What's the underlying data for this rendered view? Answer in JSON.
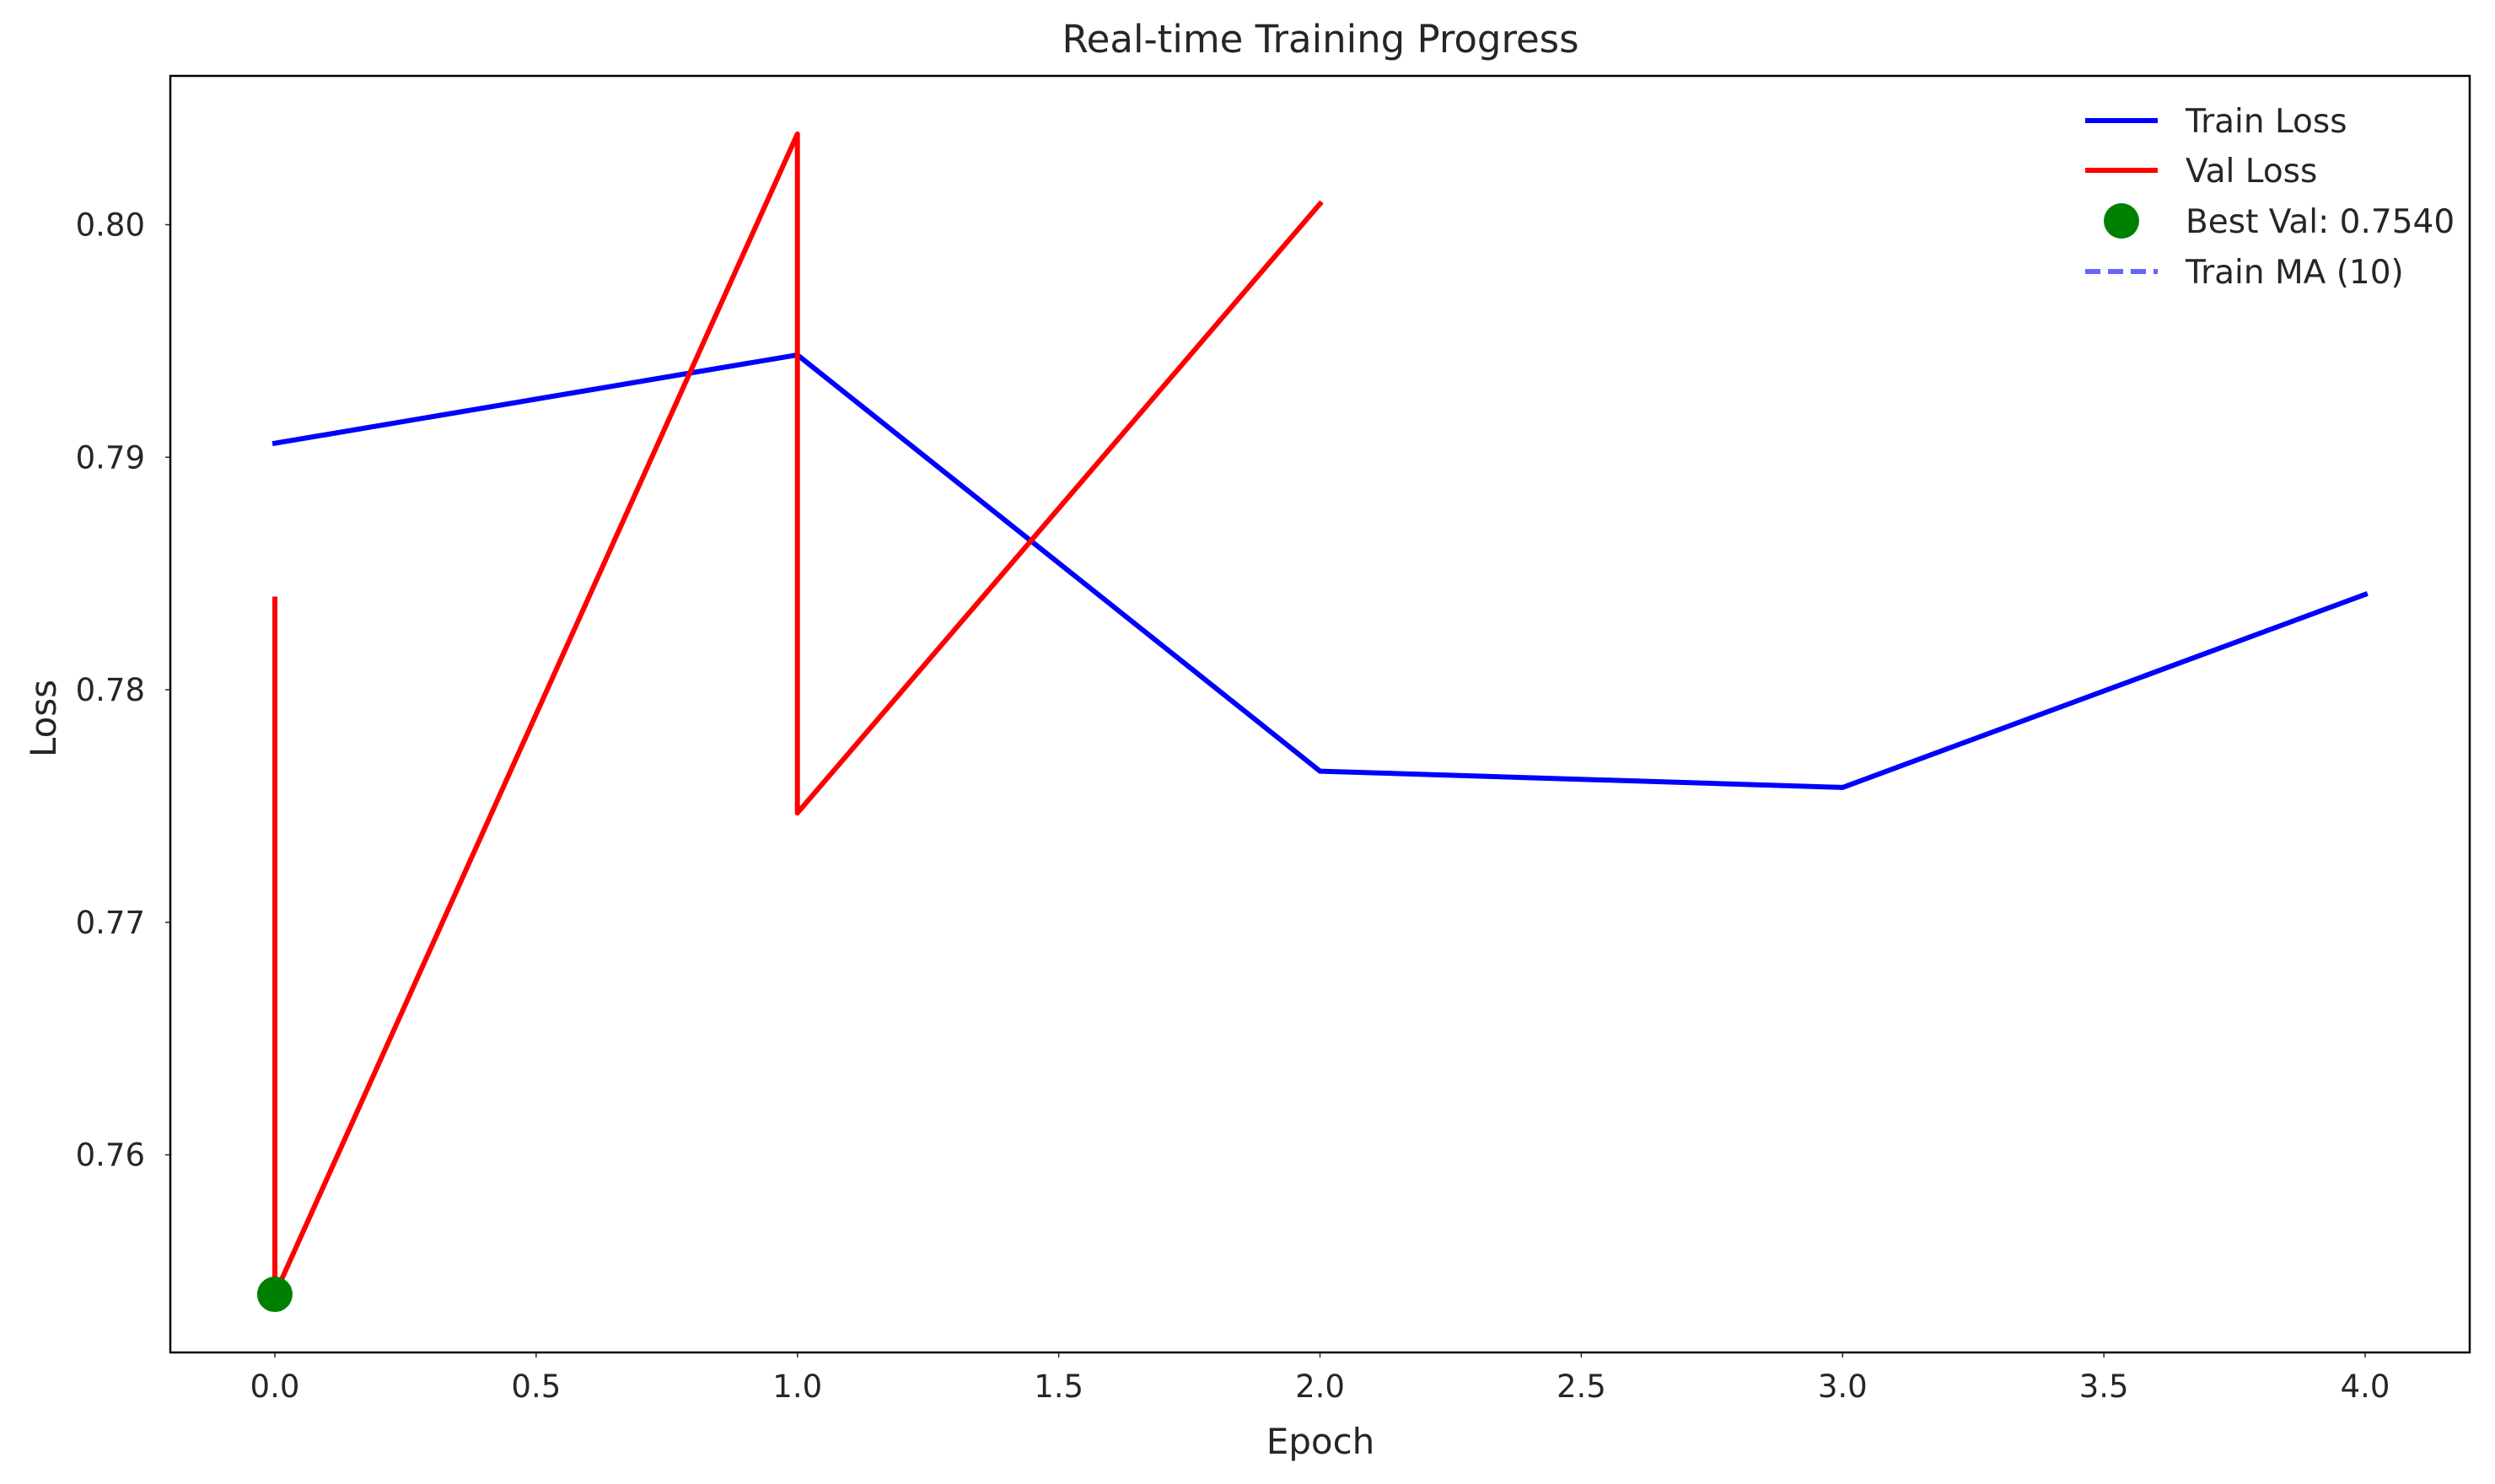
{
  "chart_data": {
    "type": "line",
    "title": "Real-time Training Progress",
    "xlabel": "Epoch",
    "ylabel": "Loss",
    "xlim": [
      -0.2,
      4.2
    ],
    "ylim": [
      0.7515,
      0.8064
    ],
    "xticks": [
      0.0,
      0.5,
      1.0,
      1.5,
      2.0,
      2.5,
      3.0,
      3.5,
      4.0
    ],
    "xtick_labels": [
      "0.0",
      "0.5",
      "1.0",
      "1.5",
      "2.0",
      "2.5",
      "3.0",
      "3.5",
      "4.0"
    ],
    "yticks": [
      0.76,
      0.77,
      0.78,
      0.79,
      0.8
    ],
    "ytick_labels": [
      "0.76",
      "0.77",
      "0.78",
      "0.79",
      "0.80"
    ],
    "grid": false,
    "legend_position": "top-right",
    "series": [
      {
        "name": "Train Loss",
        "color": "#0000ff",
        "style": "solid",
        "x": [
          0,
          1,
          2,
          3,
          4
        ],
        "y": [
          0.7906,
          0.7944,
          0.7765,
          0.7758,
          0.7841
        ]
      },
      {
        "name": "Val Loss",
        "color": "#ff0000",
        "style": "solid",
        "x": [
          0,
          0,
          1,
          1,
          2
        ],
        "y": [
          0.7839,
          0.754,
          0.8039,
          0.7747,
          0.8009
        ]
      },
      {
        "name": "Train MA (10)",
        "color": "#6666ff",
        "style": "dashed",
        "x": [],
        "y": []
      }
    ],
    "markers": [
      {
        "name": "Best Val: 0.7540",
        "color": "#008000",
        "x": 0,
        "y": 0.754
      }
    ],
    "legend": [
      {
        "label": "Train Loss",
        "kind": "line",
        "color": "#0000ff"
      },
      {
        "label": "Val Loss",
        "kind": "line",
        "color": "#ff0000"
      },
      {
        "label": "Best Val: 0.7540",
        "kind": "marker",
        "color": "#008000"
      },
      {
        "label": "Train MA (10)",
        "kind": "dashed",
        "color": "#6666ff"
      }
    ]
  }
}
